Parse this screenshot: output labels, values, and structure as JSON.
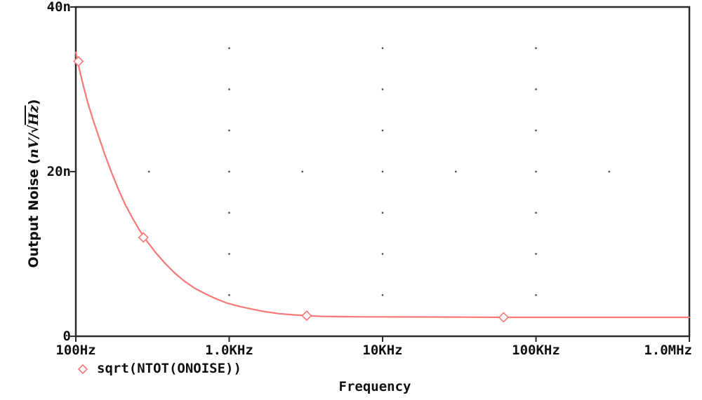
{
  "colors": {
    "trace": "#f87878",
    "axis": "#2b2b2b",
    "text": "#101010",
    "grid_dot": "#4d4d4d",
    "background": "#ffffff"
  },
  "chart_data": {
    "type": "line",
    "title": "",
    "xlabel": "Frequency",
    "ylabel": "Output Noise (nV/√Hz)",
    "ylabel_parts": {
      "prefix": "Output Noise (",
      "num": "nV",
      "slash": "/",
      "radical": "√",
      "sqrt_arg": "Hz",
      "suffix": ")"
    },
    "x_scale": "log",
    "x_range_hz": [
      100,
      1000000
    ],
    "y_range_nv": [
      0,
      40
    ],
    "x_ticks": [
      {
        "hz": 100,
        "label": "100Hz"
      },
      {
        "hz": 1000,
        "label": "1.0KHz"
      },
      {
        "hz": 10000,
        "label": "10KHz"
      },
      {
        "hz": 100000,
        "label": "100KHz"
      },
      {
        "hz": 1000000,
        "label": "1.0MHz"
      }
    ],
    "y_ticks": [
      {
        "nv": 0,
        "label": "0"
      },
      {
        "nv": 20,
        "label": "20n"
      },
      {
        "nv": 40,
        "label": "40n"
      }
    ],
    "grid": {
      "style": "dotted",
      "vertical_dot_columns_hz": [
        1000,
        10000,
        100000
      ],
      "vertical_dot_rows_nv": [
        5,
        10,
        15,
        20,
        25,
        30,
        35
      ],
      "horizontal_dot_row_nv": 20,
      "horizontal_extra_dot_cols_hz": [
        300,
        3000,
        30000,
        300000
      ]
    },
    "legend": {
      "position": "bottom-left",
      "marker": "open-diamond"
    },
    "series": [
      {
        "name": "sqrt(NTOT(ONOISE))",
        "color": "#f87878",
        "marker": "open-diamond",
        "points_hz_nv": [
          [
            100,
            34.5
          ],
          [
            105,
            32.6
          ],
          [
            112,
            30.4
          ],
          [
            120,
            28.3
          ],
          [
            130,
            26.2
          ],
          [
            142,
            24.1
          ],
          [
            155,
            22.0
          ],
          [
            170,
            20.0
          ],
          [
            190,
            17.8
          ],
          [
            210,
            16.0
          ],
          [
            235,
            14.3
          ],
          [
            260,
            12.9
          ],
          [
            290,
            11.6
          ],
          [
            330,
            10.2
          ],
          [
            380,
            8.9
          ],
          [
            440,
            7.7
          ],
          [
            510,
            6.7
          ],
          [
            600,
            5.8
          ],
          [
            700,
            5.15
          ],
          [
            820,
            4.55
          ],
          [
            960,
            4.05
          ],
          [
            1150,
            3.65
          ],
          [
            1400,
            3.3
          ],
          [
            1700,
            3.0
          ],
          [
            2100,
            2.75
          ],
          [
            2600,
            2.6
          ],
          [
            3200,
            2.5
          ],
          [
            4000,
            2.42
          ],
          [
            5500,
            2.38
          ],
          [
            8000,
            2.36
          ],
          [
            12000,
            2.35
          ],
          [
            20000,
            2.34
          ],
          [
            35000,
            2.32
          ],
          [
            61500,
            2.3
          ],
          [
            120000,
            2.3
          ],
          [
            300000,
            2.3
          ],
          [
            1000000,
            2.3
          ]
        ],
        "marker_points_hz_nv": [
          [
            104,
            33.4
          ],
          [
            276,
            12.0
          ],
          [
            3200,
            2.5
          ],
          [
            61500,
            2.3
          ]
        ]
      }
    ]
  }
}
